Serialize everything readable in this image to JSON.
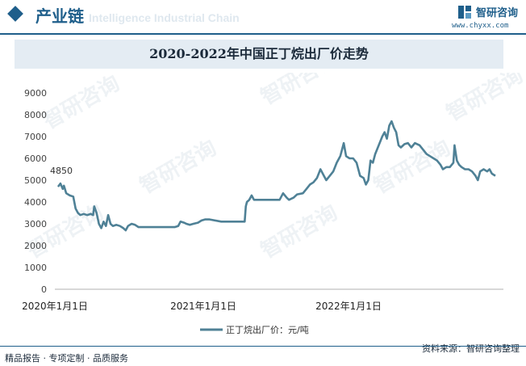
{
  "header": {
    "title": "产业链",
    "watermark": "Intelligence Industrial Chain"
  },
  "brand": {
    "name": "智研咨询",
    "url": "www.chyxx.com",
    "watermark": "智研咨询",
    "logo_icon": "chyxx-logo-icon"
  },
  "source": "资料来源：智研咨询整理",
  "footer_tagline": "精品报告 · 专项定制 · 品质服务",
  "chart_data": {
    "type": "line",
    "title": "2020-2022年中国正丁烷出厂价走势",
    "x_ticks": [
      "2020年1月1日",
      "2021年1月1日",
      "2022年1月1日"
    ],
    "y_ticks": [
      0,
      1000,
      2000,
      3000,
      4000,
      5000,
      6000,
      7000,
      8000,
      9000
    ],
    "ylim": [
      0,
      9000
    ],
    "legend": "bottom-center",
    "grid": false,
    "line_color": "#4f8196",
    "annotation": "4850",
    "series": [
      {
        "name": "正丁烷出厂价：元/吨",
        "points": [
          [
            0,
            4700
          ],
          [
            0.2,
            4850
          ],
          [
            0.4,
            4600
          ],
          [
            0.5,
            4750
          ],
          [
            0.7,
            4400
          ],
          [
            1,
            4300
          ],
          [
            1.3,
            4250
          ],
          [
            1.5,
            3700
          ],
          [
            1.7,
            3500
          ],
          [
            1.9,
            3400
          ],
          [
            2.2,
            3450
          ],
          [
            2.5,
            3400
          ],
          [
            2.8,
            3450
          ],
          [
            3.0,
            3400
          ],
          [
            3.1,
            3800
          ],
          [
            3.3,
            3500
          ],
          [
            3.5,
            3000
          ],
          [
            3.7,
            2800
          ],
          [
            3.9,
            3100
          ],
          [
            4.1,
            2900
          ],
          [
            4.3,
            3400
          ],
          [
            4.5,
            3000
          ],
          [
            4.7,
            2900
          ],
          [
            5.0,
            2950
          ],
          [
            5.3,
            2900
          ],
          [
            5.6,
            2800
          ],
          [
            5.8,
            2700
          ],
          [
            6.0,
            2900
          ],
          [
            6.3,
            3000
          ],
          [
            6.6,
            2950
          ],
          [
            6.9,
            2850
          ],
          [
            7.5,
            2850
          ],
          [
            8,
            2850
          ],
          [
            9,
            2850
          ],
          [
            10,
            2850
          ],
          [
            10.3,
            2900
          ],
          [
            10.5,
            3100
          ],
          [
            10.8,
            3050
          ],
          [
            11.0,
            3000
          ],
          [
            11.3,
            2950
          ],
          [
            11.6,
            3000
          ],
          [
            12.0,
            3050
          ],
          [
            12.3,
            3150
          ],
          [
            12.6,
            3200
          ],
          [
            13,
            3200
          ],
          [
            14,
            3100
          ],
          [
            15,
            3100
          ],
          [
            16.0,
            3100
          ],
          [
            16.1,
            3800
          ],
          [
            16.2,
            4000
          ],
          [
            16.4,
            4100
          ],
          [
            16.6,
            4300
          ],
          [
            16.8,
            4100
          ],
          [
            17.2,
            4100
          ],
          [
            18,
            4100
          ],
          [
            19.0,
            4100
          ],
          [
            19.3,
            4400
          ],
          [
            19.6,
            4200
          ],
          [
            19.8,
            4100
          ],
          [
            20.2,
            4200
          ],
          [
            20.5,
            4350
          ],
          [
            21,
            4400
          ],
          [
            21.3,
            4600
          ],
          [
            21.6,
            4800
          ],
          [
            21.9,
            4900
          ],
          [
            22.2,
            5100
          ],
          [
            22.5,
            5500
          ],
          [
            22.8,
            5200
          ],
          [
            23.0,
            5000
          ],
          [
            23.3,
            5200
          ],
          [
            23.6,
            5400
          ],
          [
            23.9,
            5800
          ],
          [
            24.2,
            6100
          ],
          [
            24.4,
            6500
          ],
          [
            24.5,
            6700
          ],
          [
            24.7,
            6100
          ],
          [
            25.0,
            6000
          ],
          [
            25.3,
            6000
          ],
          [
            25.6,
            5800
          ],
          [
            25.9,
            5200
          ],
          [
            26.2,
            5100
          ],
          [
            26.4,
            4800
          ],
          [
            26.6,
            5000
          ],
          [
            26.8,
            5900
          ],
          [
            27.0,
            5800
          ],
          [
            27.2,
            6200
          ],
          [
            27.5,
            6600
          ],
          [
            27.8,
            7000
          ],
          [
            28.0,
            7200
          ],
          [
            28.2,
            6900
          ],
          [
            28.4,
            7500
          ],
          [
            28.6,
            7700
          ],
          [
            28.8,
            7400
          ],
          [
            29.0,
            7200
          ],
          [
            29.2,
            6600
          ],
          [
            29.4,
            6500
          ],
          [
            29.7,
            6650
          ],
          [
            30.0,
            6700
          ],
          [
            30.3,
            6500
          ],
          [
            30.6,
            6700
          ],
          [
            31.0,
            6600
          ],
          [
            31.3,
            6400
          ],
          [
            31.6,
            6200
          ],
          [
            31.9,
            6100
          ],
          [
            32.2,
            6000
          ],
          [
            32.5,
            5900
          ],
          [
            32.8,
            5700
          ],
          [
            33.0,
            5500
          ],
          [
            33.3,
            5600
          ],
          [
            33.6,
            5600
          ],
          [
            33.9,
            5800
          ],
          [
            34.0,
            6600
          ],
          [
            34.2,
            5900
          ],
          [
            34.4,
            5700
          ],
          [
            34.6,
            5600
          ],
          [
            34.9,
            5500
          ],
          [
            35.2,
            5500
          ],
          [
            35.5,
            5400
          ],
          [
            35.8,
            5200
          ],
          [
            36.0,
            5000
          ],
          [
            36.2,
            5400
          ],
          [
            36.5,
            5500
          ],
          [
            36.8,
            5400
          ],
          [
            37.0,
            5500
          ],
          [
            37.2,
            5300
          ],
          [
            37.5,
            5200
          ]
        ]
      }
    ]
  }
}
